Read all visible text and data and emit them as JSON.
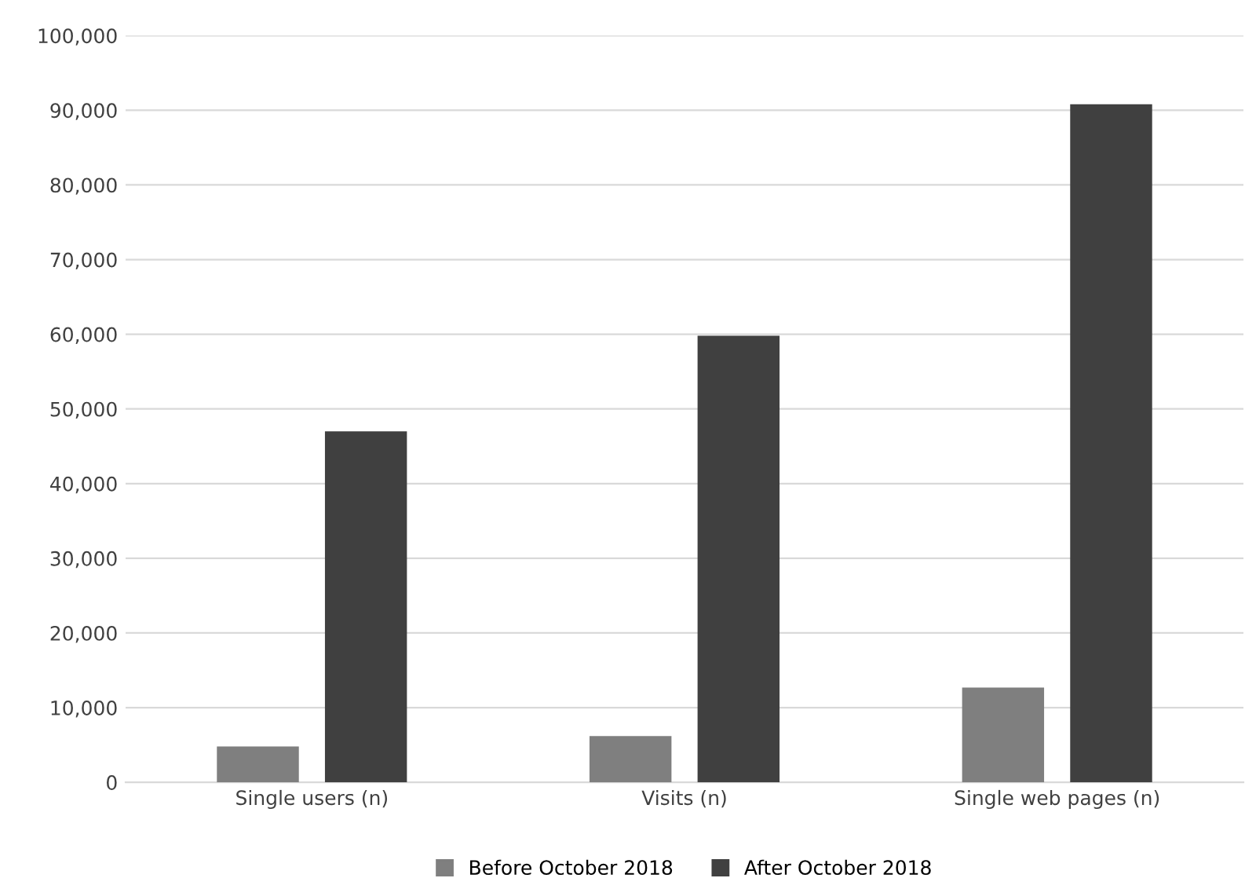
{
  "chart_data": {
    "type": "bar",
    "categories": [
      "Single users (n)",
      "Visits (n)",
      "Single web pages (n)"
    ],
    "series": [
      {
        "name": "Before October 2018",
        "color": "#7f7f7f",
        "values": [
          4800,
          6200,
          12700
        ]
      },
      {
        "name": "After October 2018",
        "color": "#404040",
        "values": [
          47000,
          59800,
          90800
        ]
      }
    ],
    "ylim": [
      0,
      100000
    ],
    "yticks": [
      {
        "value": 0,
        "label": "0"
      },
      {
        "value": 10000,
        "label": "10,000"
      },
      {
        "value": 20000,
        "label": "20,000"
      },
      {
        "value": 30000,
        "label": "30,000"
      },
      {
        "value": 40000,
        "label": "40,000"
      },
      {
        "value": 50000,
        "label": "50,000"
      },
      {
        "value": 60000,
        "label": "60,000"
      },
      {
        "value": 70000,
        "label": "70,000"
      },
      {
        "value": 80000,
        "label": "80,000"
      },
      {
        "value": 90000,
        "label": "90,000"
      },
      {
        "value": 100000,
        "label": "100,000"
      }
    ],
    "grid": "y",
    "legend": "bottom"
  }
}
